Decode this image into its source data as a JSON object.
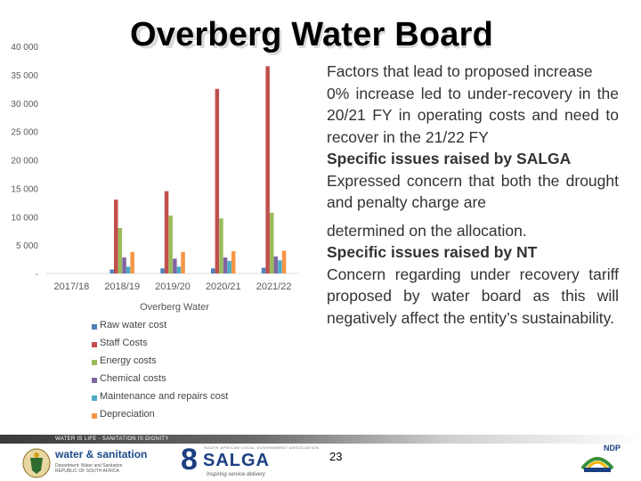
{
  "header": {
    "title": "Overberg Water Board"
  },
  "chart_data": {
    "type": "bar",
    "title": "Overberg Water",
    "categories": [
      "2017/18",
      "2018/19",
      "2019/20",
      "2020/21",
      "2021/22"
    ],
    "y_ticks": [
      "-",
      "5 000",
      "10 000",
      "15 000",
      "20 000",
      "25 000",
      "30 000",
      "35 000",
      "40 000"
    ],
    "ylim": [
      0,
      40000
    ],
    "grid": false,
    "legend_position": "bottom",
    "series": [
      {
        "name": "Raw water cost",
        "color": "#4f81bd",
        "values": [
          0,
          700,
          900,
          900,
          1000
        ]
      },
      {
        "name": "Staff Costs",
        "color": "#c0504d",
        "values": [
          0,
          13000,
          14500,
          32500,
          36500
        ]
      },
      {
        "name": "Energy costs",
        "color": "#9bbb59",
        "values": [
          0,
          8000,
          10200,
          9700,
          10700
        ]
      },
      {
        "name": "Chemical costs",
        "color": "#8064a2",
        "values": [
          0,
          2800,
          2600,
          2800,
          3000
        ]
      },
      {
        "name": "Maintenance and repairs cost",
        "color": "#4bacc6",
        "values": [
          0,
          1200,
          1200,
          2200,
          2300
        ]
      },
      {
        "name": "Depreciation",
        "color": "#f79646",
        "values": [
          0,
          3800,
          3800,
          3900,
          4000
        ]
      }
    ]
  },
  "text_panel": {
    "p1": "Factors that lead to proposed increase",
    "p2": "0% increase led to under-recovery in the 20/21 FY in operating costs and need to recover in the 21/22 FY",
    "p3": "Specific issues raised by SALGA",
    "p4": "Expressed concern that both the drought and penalty charge are",
    "p5": "determined on the allocation.",
    "p6": "Specific issues raised by NT",
    "p7": "Concern regarding under recovery tariff proposed by water board as this will negatively affect the entity’s sustainability."
  },
  "footer": {
    "band_text": "WATER IS LIFE - SANITATION IS DIGNITY",
    "page_number": "23",
    "dws_name": "water & sanitation",
    "dws_sub": "Department: Water and Sanitation REPUBLIC OF SOUTH AFRICA",
    "salga_top": "SOUTH AFRICAN LOCAL GOVERNMENT ASSOCIATION",
    "salga_name": "SALGA",
    "salga_digit": "8",
    "salga_tag": "Inspiring service delivery",
    "ndp_label": "NDP"
  },
  "colors": {
    "footer_band": "#3a3a3a",
    "salga_blue": "#1c3f82",
    "dws_blue": "#1a4a8a"
  }
}
